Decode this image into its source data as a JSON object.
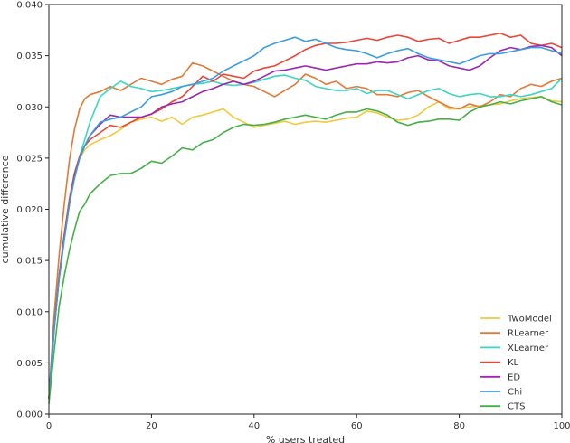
{
  "chart_data": {
    "type": "line",
    "title": "",
    "xlabel": "% users treated",
    "ylabel": "cumulative difference",
    "xlim": [
      0,
      100
    ],
    "ylim": [
      0,
      0.04
    ],
    "x_ticks": [
      0,
      20,
      40,
      60,
      80,
      100
    ],
    "x_tick_labels": [
      "0",
      "20",
      "40",
      "60",
      "80",
      "100"
    ],
    "y_ticks": [
      0,
      0.005,
      0.01,
      0.015,
      0.02,
      0.025,
      0.03,
      0.035,
      0.04
    ],
    "y_tick_labels": [
      "0.000",
      "0.005",
      "0.010",
      "0.015",
      "0.020",
      "0.025",
      "0.030",
      "0.035",
      "0.040"
    ],
    "grid": false,
    "legend_position": "lower-right",
    "x": [
      0,
      1,
      2,
      3,
      4,
      5,
      6,
      7,
      8,
      10,
      12,
      14,
      16,
      18,
      20,
      22,
      24,
      26,
      28,
      30,
      32,
      34,
      36,
      38,
      40,
      42,
      44,
      46,
      48,
      50,
      52,
      54,
      56,
      58,
      60,
      62,
      64,
      66,
      68,
      70,
      72,
      74,
      76,
      78,
      80,
      82,
      84,
      86,
      88,
      90,
      92,
      94,
      96,
      98,
      100
    ],
    "series": [
      {
        "name": "TwoModel",
        "color": "#f2c83c",
        "values": [
          0.0015,
          0.008,
          0.0135,
          0.0175,
          0.021,
          0.0235,
          0.025,
          0.0258,
          0.0263,
          0.0268,
          0.0272,
          0.0278,
          0.0285,
          0.0288,
          0.029,
          0.0286,
          0.029,
          0.0283,
          0.029,
          0.0292,
          0.0295,
          0.0298,
          0.029,
          0.0285,
          0.028,
          0.0282,
          0.0284,
          0.0286,
          0.0283,
          0.0285,
          0.0286,
          0.0285,
          0.0287,
          0.0289,
          0.029,
          0.0296,
          0.0294,
          0.029,
          0.0287,
          0.0288,
          0.0292,
          0.03,
          0.0305,
          0.0298,
          0.0298,
          0.03,
          0.0301,
          0.0302,
          0.0303,
          0.0306,
          0.0308,
          0.0309,
          0.031,
          0.0306,
          0.0305
        ]
      },
      {
        "name": "RLearner",
        "color": "#e07b39",
        "values": [
          0.0015,
          0.0095,
          0.0155,
          0.0205,
          0.0248,
          0.0278,
          0.0298,
          0.0308,
          0.0312,
          0.0315,
          0.032,
          0.0316,
          0.0322,
          0.0328,
          0.0325,
          0.0322,
          0.0327,
          0.033,
          0.0343,
          0.034,
          0.0335,
          0.033,
          0.0325,
          0.0322,
          0.032,
          0.0315,
          0.031,
          0.0316,
          0.0322,
          0.0332,
          0.0328,
          0.0322,
          0.0325,
          0.0318,
          0.032,
          0.0318,
          0.0312,
          0.0312,
          0.031,
          0.0314,
          0.0316,
          0.031,
          0.0305,
          0.03,
          0.0298,
          0.0303,
          0.03,
          0.0305,
          0.0312,
          0.031,
          0.0318,
          0.0322,
          0.032,
          0.0325,
          0.0328
        ]
      },
      {
        "name": "XLearner",
        "color": "#3dd6c0",
        "values": [
          0.0015,
          0.008,
          0.0135,
          0.0175,
          0.021,
          0.0235,
          0.0252,
          0.0268,
          0.0285,
          0.031,
          0.0318,
          0.0325,
          0.032,
          0.0318,
          0.0315,
          0.0316,
          0.0318,
          0.032,
          0.0322,
          0.0323,
          0.0325,
          0.0322,
          0.0321,
          0.0322,
          0.0324,
          0.0327,
          0.033,
          0.0331,
          0.0328,
          0.0326,
          0.032,
          0.0318,
          0.0316,
          0.0316,
          0.0318,
          0.0313,
          0.0316,
          0.0316,
          0.0312,
          0.0308,
          0.0312,
          0.0316,
          0.0318,
          0.0313,
          0.031,
          0.0312,
          0.0313,
          0.031,
          0.031,
          0.0312,
          0.031,
          0.0312,
          0.0315,
          0.0318,
          0.0328
        ]
      },
      {
        "name": "KL",
        "color": "#e8473a",
        "values": [
          0.0015,
          0.0085,
          0.0135,
          0.0175,
          0.021,
          0.0235,
          0.0252,
          0.0262,
          0.0268,
          0.0275,
          0.0282,
          0.028,
          0.0285,
          0.029,
          0.0293,
          0.0298,
          0.0305,
          0.031,
          0.032,
          0.033,
          0.0325,
          0.0332,
          0.033,
          0.0328,
          0.0335,
          0.0338,
          0.034,
          0.0345,
          0.035,
          0.0356,
          0.036,
          0.0362,
          0.0362,
          0.0363,
          0.0365,
          0.0367,
          0.0365,
          0.0368,
          0.037,
          0.0368,
          0.0364,
          0.0366,
          0.0367,
          0.0362,
          0.0365,
          0.0368,
          0.0368,
          0.037,
          0.0372,
          0.0368,
          0.037,
          0.0362,
          0.036,
          0.0362,
          0.0358
        ]
      },
      {
        "name": "ED",
        "color": "#9b27b0",
        "values": [
          0.0015,
          0.0082,
          0.0132,
          0.0172,
          0.0205,
          0.0232,
          0.025,
          0.0262,
          0.0272,
          0.0283,
          0.0292,
          0.029,
          0.029,
          0.029,
          0.0293,
          0.03,
          0.0303,
          0.0305,
          0.031,
          0.0315,
          0.0318,
          0.0322,
          0.0325,
          0.0322,
          0.0325,
          0.033,
          0.0335,
          0.0336,
          0.0338,
          0.034,
          0.0338,
          0.0336,
          0.0338,
          0.034,
          0.0342,
          0.0342,
          0.0344,
          0.0343,
          0.0344,
          0.0348,
          0.035,
          0.0346,
          0.0345,
          0.034,
          0.0338,
          0.0336,
          0.034,
          0.0348,
          0.0355,
          0.0358,
          0.0356,
          0.0359,
          0.036,
          0.0358,
          0.035
        ]
      },
      {
        "name": "Chi",
        "color": "#3b9de0",
        "values": [
          0.0015,
          0.0082,
          0.0132,
          0.017,
          0.0205,
          0.023,
          0.025,
          0.0262,
          0.0272,
          0.0285,
          0.0288,
          0.029,
          0.0295,
          0.03,
          0.031,
          0.0312,
          0.0315,
          0.032,
          0.0322,
          0.0325,
          0.0328,
          0.0335,
          0.034,
          0.0345,
          0.035,
          0.0358,
          0.0362,
          0.0365,
          0.0368,
          0.0364,
          0.0366,
          0.0362,
          0.0358,
          0.0356,
          0.0355,
          0.0352,
          0.0348,
          0.0352,
          0.0355,
          0.0357,
          0.0352,
          0.0348,
          0.0346,
          0.0344,
          0.0342,
          0.0346,
          0.035,
          0.0352,
          0.0352,
          0.0354,
          0.0356,
          0.0358,
          0.0358,
          0.0355,
          0.0352
        ]
      },
      {
        "name": "CTS",
        "color": "#45b048",
        "values": [
          0.001,
          0.006,
          0.0105,
          0.0135,
          0.016,
          0.018,
          0.0198,
          0.0205,
          0.0215,
          0.0225,
          0.0233,
          0.0235,
          0.0235,
          0.024,
          0.0247,
          0.0245,
          0.0252,
          0.026,
          0.0258,
          0.0265,
          0.0268,
          0.0275,
          0.028,
          0.0283,
          0.0282,
          0.0283,
          0.0285,
          0.0288,
          0.029,
          0.0292,
          0.029,
          0.0288,
          0.0292,
          0.0295,
          0.0295,
          0.0298,
          0.0296,
          0.0292,
          0.0285,
          0.0282,
          0.0285,
          0.0286,
          0.0288,
          0.0288,
          0.0287,
          0.0295,
          0.03,
          0.0302,
          0.0305,
          0.0303,
          0.0306,
          0.0308,
          0.031,
          0.0305,
          0.0302
        ]
      }
    ]
  }
}
